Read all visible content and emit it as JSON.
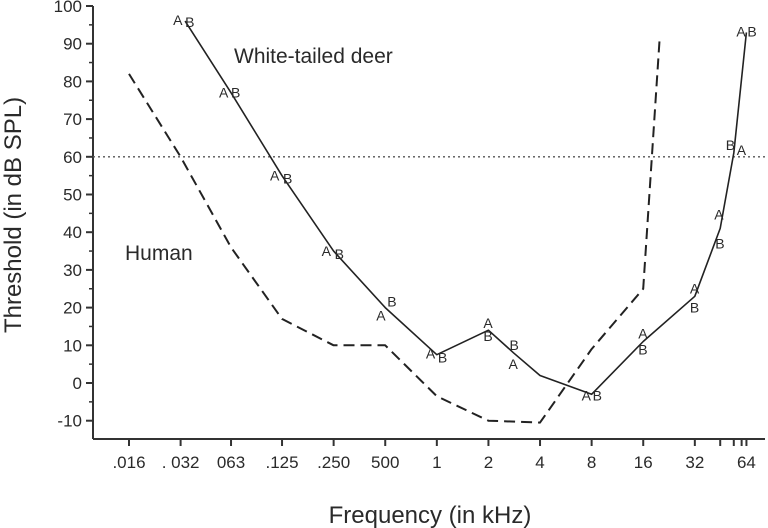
{
  "chart_data": {
    "type": "line",
    "title": "",
    "xlabel": "Frequency (in kHz)",
    "ylabel": "Threshold (in dB SPL)",
    "x_scale": "log2",
    "ylim": [
      -10,
      100
    ],
    "y_ticks": [
      -10,
      0,
      10,
      20,
      30,
      40,
      50,
      60,
      70,
      80,
      90,
      100
    ],
    "x_ticks": [
      {
        "value": 0.016,
        "label": ".016"
      },
      {
        "value": 0.032,
        "label": ". 032"
      },
      {
        "value": 0.063,
        "label": "063"
      },
      {
        "value": 0.125,
        "label": ".125"
      },
      {
        "value": 0.25,
        "label": ".250"
      },
      {
        "value": 0.5,
        "label": "500"
      },
      {
        "value": 1,
        "label": "1"
      },
      {
        "value": 2,
        "label": "2"
      },
      {
        "value": 4,
        "label": "4"
      },
      {
        "value": 8,
        "label": "8"
      },
      {
        "value": 16,
        "label": "16"
      },
      {
        "value": 32,
        "label": "32"
      },
      {
        "value": 64,
        "label": "64"
      }
    ],
    "x_minor_ticks": [
      45,
      54,
      60
    ],
    "grid": false,
    "reference_line": {
      "y": 60,
      "style": "dotted"
    },
    "annotations": [
      {
        "text": "White-tailed deer",
        "x": 0.25,
        "y": 87
      },
      {
        "text": "Human",
        "x": 0.022,
        "y": 35
      }
    ],
    "series": [
      {
        "name": "White-tailed deer",
        "style": "solid",
        "x": [
          0.034,
          0.063,
          0.125,
          0.25,
          0.5,
          1,
          2,
          2.8,
          4,
          8,
          16,
          32,
          45,
          54,
          64
        ],
        "y": [
          96,
          77,
          55,
          35,
          20,
          7.5,
          14,
          8,
          2,
          -3,
          11,
          23,
          41,
          61,
          93
        ],
        "point_labels": [
          [
            {
              "t": "A",
              "dx": -12,
              "dy": 4
            },
            {
              "t": "B",
              "dx": 0,
              "dy": 6
            }
          ],
          [
            {
              "t": "A",
              "dx": -12,
              "dy": 5
            },
            {
              "t": "B",
              "dx": 0,
              "dy": 5
            }
          ],
          [
            {
              "t": "A",
              "dx": -12,
              "dy": 5
            },
            {
              "t": "B",
              "dx": 1,
              "dy": 8
            }
          ],
          [
            {
              "t": "A",
              "dx": -12,
              "dy": 5
            },
            {
              "t": "B",
              "dx": 1,
              "dy": 8
            }
          ],
          [
            {
              "t": "A",
              "dx": -9,
              "dy": 13
            },
            {
              "t": "B",
              "dx": 2,
              "dy": -1
            }
          ],
          [
            {
              "t": "A",
              "dx": -11,
              "dy": 4
            },
            {
              "t": "B",
              "dx": 1,
              "dy": 8
            }
          ],
          [
            {
              "t": "A",
              "dx": -5,
              "dy": -2
            },
            {
              "t": "B",
              "dx": -5,
              "dy": 11
            }
          ],
          [
            {
              "t": "B",
              "dx": -4,
              "dy": -3
            },
            {
              "t": "A",
              "dx": -5,
              "dy": 16
            }
          ],
          [],
          [
            {
              "t": "A",
              "dx": -10,
              "dy": 6
            },
            {
              "t": "B",
              "dx": 1,
              "dy": 6
            }
          ],
          [
            {
              "t": "A",
              "dx": -5,
              "dy": -3
            },
            {
              "t": "B",
              "dx": -5,
              "dy": 13
            }
          ],
          [
            {
              "t": "A",
              "dx": -5,
              "dy": -3
            },
            {
              "t": "B",
              "dx": -5,
              "dy": 16
            }
          ],
          [
            {
              "t": "A",
              "dx": -6,
              "dy": -9
            },
            {
              "t": "B",
              "dx": -5,
              "dy": 20
            }
          ],
          [
            {
              "t": "B",
              "dx": -8,
              "dy": -3
            },
            {
              "t": "A",
              "dx": 3,
              "dy": 2
            }
          ],
          [
            {
              "t": "A",
              "dx": -10,
              "dy": 4
            },
            {
              "t": "B",
              "dx": 1,
              "dy": 4
            }
          ]
        ]
      },
      {
        "name": "Human",
        "style": "dashed",
        "x": [
          0.016,
          0.032,
          0.063,
          0.125,
          0.25,
          0.5,
          1,
          2,
          4,
          8,
          16,
          20
        ],
        "y": [
          82,
          60,
          36,
          17,
          10,
          10,
          -3.5,
          -10,
          -10.5,
          9,
          25,
          92
        ]
      }
    ]
  }
}
